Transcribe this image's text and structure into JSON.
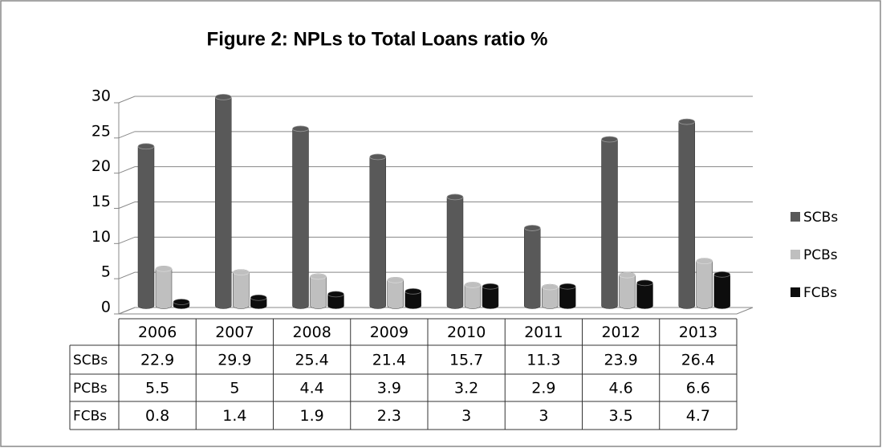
{
  "chart_data": {
    "type": "bar",
    "title": "Figure 2: NPLs to Total Loans ratio %",
    "categories": [
      "2006",
      "2007",
      "2008",
      "2009",
      "2010",
      "2011",
      "2012",
      "2013"
    ],
    "series": [
      {
        "name": "SCBs",
        "color": "#595959",
        "values": [
          22.9,
          29.9,
          25.4,
          21.4,
          15.7,
          11.3,
          23.9,
          26.4
        ]
      },
      {
        "name": "PCBs",
        "color": "#bfbfbf",
        "values": [
          5.5,
          5,
          4.4,
          3.9,
          3.2,
          2.9,
          4.6,
          6.6
        ]
      },
      {
        "name": "FCBs",
        "color": "#0d0d0d",
        "values": [
          0.8,
          1.4,
          1.9,
          2.3,
          3,
          3,
          3.5,
          4.7
        ]
      }
    ],
    "ylim": [
      0,
      30
    ],
    "yticks": [
      0,
      5,
      10,
      15,
      20,
      25,
      30
    ],
    "grid": true,
    "legend": "right",
    "data_table": true
  }
}
